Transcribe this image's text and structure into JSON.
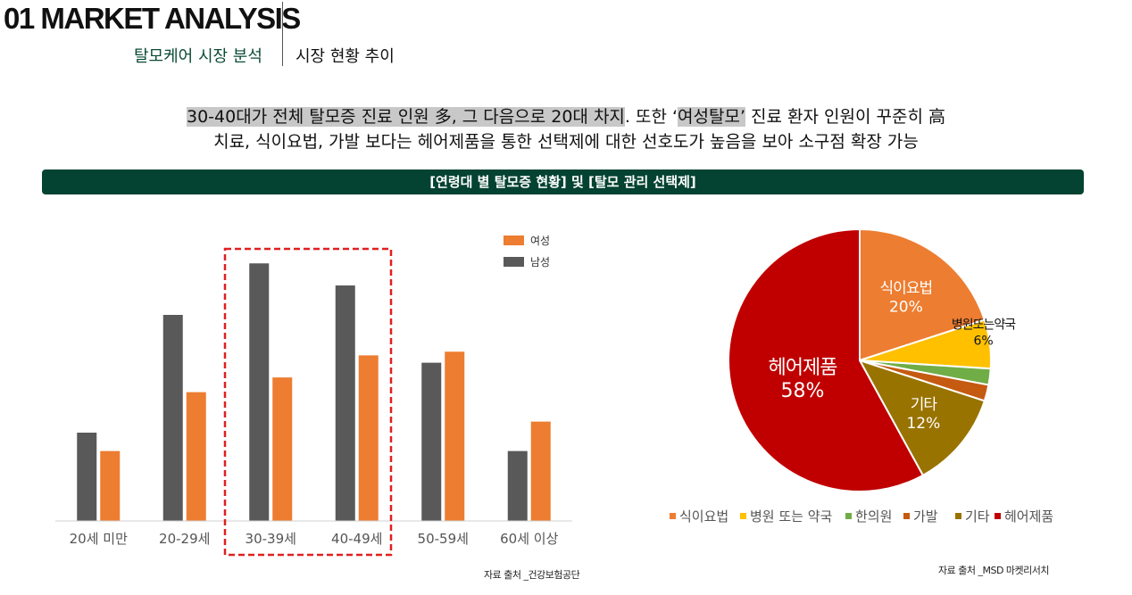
{
  "header": {
    "title": "01 MARKET ANALYSIS",
    "subtitle_left": "탈모케어 시장 분석",
    "subtitle_right": "시장 현황 추이"
  },
  "summary": {
    "line1_highlight": "30-40대가 전체 탈모증 진료 인원 多, 그 다음으로 20대 차지",
    "line1_mid": ". 또한 ‘",
    "line1_highlight2": "여성탈모’",
    "line1_end": " 진료 환자 인원이 꾸준히 高",
    "line2": "치료, 식이요법, 가발 보다는 헤어제품을 통한 선택제에 대한 선호도가 높음을 보아 소구점 확장 가능"
  },
  "banner": {
    "text": "[연령대 별 탈모증 현황] 및 [탈모 관리 선택제]"
  },
  "colors": {
    "female": "#ed7d31",
    "male": "#595959",
    "highlight_box": "#e02020",
    "banner": "#044331"
  },
  "chart_data": [
    {
      "type": "bar",
      "categories": [
        "20세 미만",
        "20-29세",
        "30-39세",
        "40-49세",
        "50-59세",
        "60세 이상"
      ],
      "series": [
        {
          "name": "남성",
          "values": [
            24,
            56,
            70,
            64,
            43,
            19
          ]
        },
        {
          "name": "여성",
          "values": [
            19,
            35,
            39,
            45,
            46,
            27
          ]
        }
      ],
      "legend_order": [
        "여성",
        "남성"
      ],
      "legend_position": "top-right",
      "ylim": [
        0,
        80
      ],
      "grid": false,
      "highlight_categories": [
        "30-39세",
        "40-49세"
      ],
      "source": "자료 출처 _건강보험공단"
    },
    {
      "type": "pie",
      "labels": [
        "식이요법",
        "병원 또는 약국",
        "한의원",
        "가발",
        "기타",
        "헤어제품"
      ],
      "values": [
        20,
        6,
        2,
        2,
        12,
        58
      ],
      "colors": [
        "#ed7d31",
        "#ffc000",
        "#70ad47",
        "#c55a11",
        "#997300",
        "#c00000"
      ],
      "slice_labels": [
        {
          "name": "식이요법",
          "value": "20%"
        },
        {
          "name": "병원또는약국",
          "value": "6%"
        },
        {
          "name": "",
          "value": ""
        },
        {
          "name": "",
          "value": ""
        },
        {
          "name": "기타",
          "value": "12%"
        },
        {
          "name": "헤어제품",
          "value": "58%"
        }
      ],
      "legend_position": "bottom",
      "source": "자료 출처 _MSD 마켓리서치"
    }
  ]
}
